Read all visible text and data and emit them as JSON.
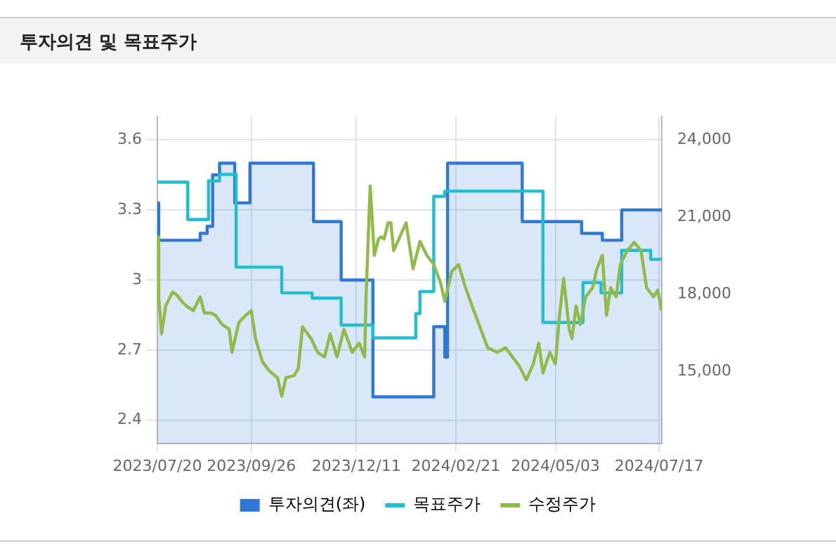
{
  "chart_data": {
    "type": "line",
    "title": "투자의견 및 목표주가",
    "xlim": [
      "2023-07-20",
      "2024-07-19"
    ],
    "xticks": [
      {
        "value": "2023-07-20",
        "label": "2023/07/20"
      },
      {
        "value": "2023-09-26",
        "label": "2023/09/26"
      },
      {
        "value": "2023-12-11",
        "label": "2023/12/11"
      },
      {
        "value": "2024-02-21",
        "label": "2024/02/21"
      },
      {
        "value": "2024-05-03",
        "label": "2024/05/03"
      },
      {
        "value": "2024-07-17",
        "label": "2024/07/17"
      }
    ],
    "ylim": [
      2.3,
      3.7
    ],
    "yticks": [
      2.4,
      2.7,
      3,
      3.3,
      3.6
    ],
    "y2lim": [
      12200,
      24900
    ],
    "y2ticks": [
      {
        "value": 15000,
        "label": "15,000"
      },
      {
        "value": 18000,
        "label": "18,000"
      },
      {
        "value": 21000,
        "label": "21,000"
      },
      {
        "value": 24000,
        "label": "24,000"
      }
    ],
    "grid": true,
    "legend": "bottom",
    "marker": "none",
    "series": [
      {
        "name": "투자의견(좌)",
        "type": "area",
        "color": "#2f78d6",
        "x": [
          "2023-07-20",
          "2023-07-21",
          "2023-07-21",
          "2023-08-20",
          "2023-08-20",
          "2023-08-25",
          "2023-08-25",
          "2023-08-29",
          "2023-08-29",
          "2023-09-03",
          "2023-09-03",
          "2023-09-14",
          "2023-09-14",
          "2023-09-25",
          "2023-09-25",
          "2023-11-10",
          "2023-11-10",
          "2023-11-30",
          "2023-11-30",
          "2023-12-23",
          "2023-12-23",
          "2024-02-05",
          "2024-02-05",
          "2024-02-13",
          "2024-02-13",
          "2024-02-15",
          "2024-02-15",
          "2024-04-09",
          "2024-04-09",
          "2024-05-22",
          "2024-05-22",
          "2024-06-06",
          "2024-06-06",
          "2024-06-20",
          "2024-06-20",
          "2024-07-19"
        ],
        "values": [
          3.33,
          3.33,
          3.17,
          3.17,
          3.2,
          3.2,
          3.23,
          3.23,
          3.45,
          3.45,
          3.5,
          3.5,
          3.33,
          3.33,
          3.5,
          3.5,
          3.25,
          3.25,
          3.0,
          3.0,
          2.5,
          2.5,
          2.8,
          2.8,
          2.67,
          2.67,
          3.5,
          3.5,
          3.25,
          3.25,
          3.2,
          3.2,
          3.17,
          3.17,
          3.3,
          3.3
        ]
      },
      {
        "name": "목표주가",
        "type": "step",
        "axis": "y2",
        "color": "#1fbfcf",
        "x": [
          "2023-07-20",
          "2023-08-11",
          "2023-08-26",
          "2023-09-03",
          "2023-09-15",
          "2023-10-18",
          "2023-11-09",
          "2023-11-30",
          "2023-12-23",
          "2024-01-23",
          "2024-01-26",
          "2024-02-05",
          "2024-02-13",
          "2024-04-24",
          "2024-05-23",
          "2024-06-05",
          "2024-06-20",
          "2024-07-11",
          "2024-07-19"
        ],
        "values": [
          22350,
          20900,
          22400,
          22650,
          19050,
          18050,
          17850,
          16800,
          16300,
          17250,
          18100,
          21800,
          22000,
          16900,
          18450,
          18050,
          19700,
          19350,
          19350
        ]
      },
      {
        "name": "수정주가",
        "type": "line",
        "axis": "y2",
        "color": "#8fbb4a",
        "x": [
          "2023-07-20",
          "2023-07-21",
          "2023-07-23",
          "2023-07-26",
          "2023-07-31",
          "2023-08-03",
          "2023-08-07",
          "2023-08-10",
          "2023-08-15",
          "2023-08-20",
          "2023-08-23",
          "2023-08-28",
          "2023-08-31",
          "2023-09-05",
          "2023-09-10",
          "2023-09-12",
          "2023-09-17",
          "2023-09-22",
          "2023-09-26",
          "2023-09-29",
          "2023-10-04",
          "2023-10-09",
          "2023-10-15",
          "2023-10-18",
          "2023-10-21",
          "2023-10-27",
          "2023-10-30",
          "2023-11-02",
          "2023-11-08",
          "2023-11-13",
          "2023-11-18",
          "2023-11-22",
          "2023-11-27",
          "2023-12-02",
          "2023-12-08",
          "2023-12-13",
          "2023-12-17",
          "2023-12-18",
          "2023-12-21",
          "2023-12-24",
          "2023-12-27",
          "2023-12-29",
          "2023-12-31",
          "2024-01-03",
          "2024-01-05",
          "2024-01-07",
          "2024-01-10",
          "2024-01-16",
          "2024-01-21",
          "2024-01-26",
          "2024-01-31",
          "2024-02-05",
          "2024-02-10",
          "2024-02-13",
          "2024-02-18",
          "2024-02-23",
          "2024-02-28",
          "2024-03-05",
          "2024-03-10",
          "2024-03-15",
          "2024-03-22",
          "2024-03-28",
          "2024-04-02",
          "2024-04-07",
          "2024-04-12",
          "2024-04-17",
          "2024-04-21",
          "2024-04-24",
          "2024-04-29",
          "2024-05-03",
          "2024-05-06",
          "2024-05-09",
          "2024-05-13",
          "2024-05-15",
          "2024-05-18",
          "2024-05-21",
          "2024-05-25",
          "2024-05-30",
          "2024-06-02",
          "2024-06-06",
          "2024-06-09",
          "2024-06-12",
          "2024-06-16",
          "2024-06-19",
          "2024-06-24",
          "2024-06-29",
          "2024-07-04",
          "2024-07-08",
          "2024-07-13",
          "2024-07-16",
          "2024-07-19"
        ],
        "values": [
          20230,
          17900,
          16460,
          17540,
          18080,
          17970,
          17700,
          17540,
          17360,
          17900,
          17270,
          17270,
          17180,
          16820,
          16640,
          15740,
          16910,
          17180,
          17360,
          16280,
          15380,
          15020,
          14750,
          14040,
          14750,
          14840,
          15110,
          16730,
          16300,
          15740,
          15560,
          16460,
          15560,
          16640,
          15740,
          16100,
          15560,
          17900,
          22200,
          19510,
          20140,
          20230,
          20140,
          20770,
          20770,
          19690,
          20050,
          20770,
          18980,
          20050,
          19510,
          19150,
          18430,
          17720,
          18880,
          19150,
          18250,
          17360,
          16640,
          15920,
          15740,
          15920,
          15560,
          15200,
          14670,
          15290,
          16100,
          14940,
          15740,
          15290,
          17180,
          18610,
          16640,
          16280,
          17540,
          16820,
          17900,
          18250,
          18980,
          19510,
          17180,
          18250,
          17900,
          19150,
          19690,
          20010,
          19690,
          18250,
          17900,
          18160,
          17360
        ]
      }
    ]
  }
}
